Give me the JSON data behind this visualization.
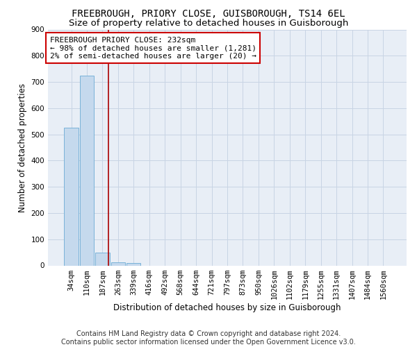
{
  "title": "FREEBROUGH, PRIORY CLOSE, GUISBOROUGH, TS14 6EL",
  "subtitle": "Size of property relative to detached houses in Guisborough",
  "xlabel": "Distribution of detached houses by size in Guisborough",
  "ylabel": "Number of detached properties",
  "footer_line1": "Contains HM Land Registry data © Crown copyright and database right 2024.",
  "footer_line2": "Contains public sector information licensed under the Open Government Licence v3.0.",
  "bar_labels": [
    "34sqm",
    "110sqm",
    "187sqm",
    "263sqm",
    "339sqm",
    "416sqm",
    "492sqm",
    "568sqm",
    "644sqm",
    "721sqm",
    "797sqm",
    "873sqm",
    "950sqm",
    "1026sqm",
    "1102sqm",
    "1179sqm",
    "1255sqm",
    "1331sqm",
    "1407sqm",
    "1484sqm",
    "1560sqm"
  ],
  "bar_values": [
    525,
    725,
    50,
    12,
    10,
    0,
    0,
    0,
    0,
    0,
    0,
    0,
    0,
    0,
    0,
    0,
    0,
    0,
    0,
    0,
    0
  ],
  "bar_color": "#c5d9ed",
  "bar_edge_color": "#6aaad4",
  "red_line_x": 2.38,
  "annotation_text": "FREEBROUGH PRIORY CLOSE: 232sqm\n← 98% of detached houses are smaller (1,281)\n2% of semi-detached houses are larger (20) →",
  "annotation_box_color": "#ffffff",
  "annotation_box_edge_color": "#cc0000",
  "ylim": [
    0,
    900
  ],
  "yticks": [
    0,
    100,
    200,
    300,
    400,
    500,
    600,
    700,
    800,
    900
  ],
  "grid_color": "#c8d4e4",
  "background_color": "#e8eef6",
  "title_fontsize": 10,
  "subtitle_fontsize": 9.5,
  "axis_label_fontsize": 8.5,
  "tick_fontsize": 7.5,
  "annotation_fontsize": 8,
  "footer_fontsize": 7
}
